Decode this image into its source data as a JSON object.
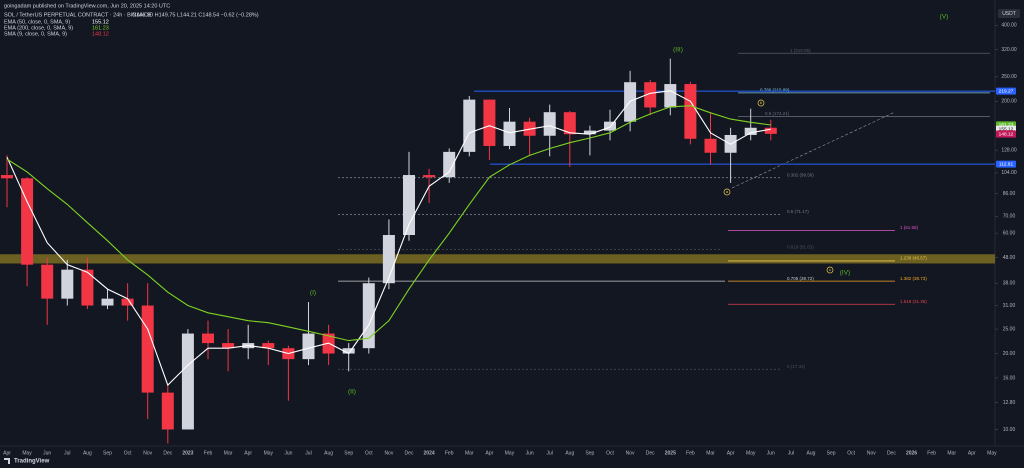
{
  "header": {
    "publisher": "goingadam published on TradingView.com, Jun 20, 2025 14:20 UTC",
    "symbol": "SOL / TetherUS PERPETUAL CONTRACT · 24h · BINANCE",
    "ohlc": "O146.90 H149.75 L144.21 C148.54 −0.62 (−0.28%)",
    "brand": "TradingView"
  },
  "chart_data": {
    "type": "candlestick",
    "categories": [
      "Apr",
      "May",
      "Jun",
      "Jul",
      "Aug",
      "Sep",
      "Oct",
      "Nov",
      "Dec",
      "2023",
      "Feb",
      "Mar",
      "Apr",
      "May",
      "Jun",
      "Jul",
      "Aug",
      "Sep",
      "Oct",
      "Nov",
      "Dec",
      "2024",
      "Feb",
      "Mar",
      "Apr",
      "May",
      "Jun",
      "Jul",
      "Aug",
      "Sep",
      "Oct",
      "Nov",
      "Dec",
      "2025",
      "Feb",
      "Mar",
      "Apr",
      "May",
      "Jun",
      "Jul",
      "Aug",
      "Sep",
      "Oct",
      "Nov",
      "Dec",
      "2026",
      "Feb",
      "Mar",
      "Apr",
      "May"
    ],
    "open": [
      102,
      99,
      45,
      33,
      43,
      31,
      33,
      31,
      14,
      10,
      24,
      22,
      21,
      22,
      21,
      19,
      24,
      20,
      21,
      38,
      59,
      102,
      100,
      126,
      203,
      133,
      166,
      146,
      181,
      148,
      153,
      166,
      238,
      189,
      234,
      142,
      125,
      147,
      157,
      null,
      null,
      null,
      null,
      null,
      null,
      null,
      null,
      null,
      null,
      null
    ],
    "high": [
      122,
      100,
      48,
      47,
      48,
      36,
      38,
      38,
      15,
      25,
      27,
      25,
      26,
      22.5,
      21.5,
      32,
      26,
      22,
      40,
      68,
      126,
      108,
      130,
      210,
      203,
      188,
      172,
      194,
      183,
      160,
      185,
      264,
      243,
      295,
      239,
      180,
      157,
      187,
      169,
      null,
      null,
      null,
      null,
      null,
      null,
      null,
      null,
      null,
      null,
      null
    ],
    "low": [
      76,
      37,
      26,
      31,
      30,
      30,
      27,
      11,
      8.8,
      10,
      19,
      17,
      19,
      18,
      13,
      18,
      18,
      17,
      20,
      36,
      56,
      79,
      95,
      121,
      117,
      129,
      122,
      121,
      110,
      122,
      140,
      152,
      176,
      176,
      135,
      112,
      95,
      140,
      140,
      null,
      null,
      null,
      null,
      null,
      null,
      null,
      null,
      null,
      null,
      null
    ],
    "close": [
      99,
      45,
      33,
      43,
      31,
      33,
      31,
      14,
      10,
      24,
      22,
      21,
      22,
      21,
      19,
      24,
      20,
      21,
      38,
      59,
      102,
      100,
      126,
      203,
      133,
      166,
      146,
      181,
      148,
      153,
      166,
      238,
      189,
      234,
      142,
      125,
      147,
      157,
      148.54,
      null,
      null,
      null,
      null,
      null,
      null,
      null,
      null,
      null,
      null,
      null
    ],
    "up_color": "#d1d4dc",
    "down_color": "#f23645",
    "series": [
      {
        "name": "EMA (50, close, 0, SMA, 9)",
        "last": 155.12,
        "color": "#ffffff",
        "values": [
          120,
          80,
          55,
          45,
          42,
          36,
          33,
          25,
          15,
          18,
          21,
          21,
          21.5,
          21,
          20,
          21,
          22,
          20,
          26,
          40,
          65,
          92,
          105,
          150,
          160,
          150,
          155,
          160,
          150,
          148,
          158,
          200,
          215,
          220,
          200,
          150,
          135,
          150,
          155,
          null,
          null,
          null,
          null,
          null,
          null,
          null,
          null,
          null,
          null,
          null
        ]
      },
      {
        "name": "EMA (200, close, 0, SMA, 9)",
        "last": 161.23,
        "color": "#7ed321",
        "values": [
          118,
          105,
          90,
          78,
          66,
          56,
          47,
          41,
          35,
          31,
          29,
          28,
          27,
          26.5,
          25.5,
          24.5,
          23.5,
          22.5,
          23,
          27,
          36,
          47,
          60,
          78,
          100,
          112,
          122,
          130,
          137,
          143,
          150,
          165,
          178,
          190,
          192,
          180,
          170,
          165,
          161,
          null,
          null,
          null,
          null,
          null,
          null,
          null,
          null,
          null,
          null,
          null
        ]
      },
      {
        "name": "SMA (9, close, 0, SMA, 9)",
        "last": 148.12,
        "color": "#f23645"
      }
    ],
    "ylim": [
      8.6,
      460
    ],
    "log_scale": true,
    "grid": false,
    "y_unit": "USDT",
    "yticks": [
      {
        "value": 400,
        "label": "400.00"
      },
      {
        "value": 320,
        "label": "320.00"
      },
      {
        "value": 250,
        "label": "250.00"
      },
      {
        "value": 200,
        "label": "200.00"
      },
      {
        "value": 128,
        "label": "128.00"
      },
      {
        "value": 104,
        "label": "104.00"
      },
      {
        "value": 86,
        "label": "86.00"
      },
      {
        "value": 70,
        "label": "70.00"
      },
      {
        "value": 60,
        "label": "60.00"
      },
      {
        "value": 48,
        "label": "48.00"
      },
      {
        "value": 38,
        "label": "38.00"
      },
      {
        "value": 31,
        "label": "31.00"
      },
      {
        "value": 25,
        "label": "25.00"
      },
      {
        "value": 20,
        "label": "20.00"
      },
      {
        "value": 16,
        "label": "16.00"
      },
      {
        "value": 12.8,
        "label": "12.80"
      },
      {
        "value": 10,
        "label": "10.00"
      }
    ],
    "levels": [
      {
        "label": "1 (310.05)",
        "value": 310.05,
        "color": "#555b6a"
      },
      {
        "label": "0.786 (215.89)",
        "value": 215.89,
        "color": "#7ec8e3"
      },
      {
        "label": "0.5 (174.21)",
        "value": 174.21,
        "color": "#6b7080"
      },
      {
        "label": "0.382 (99.56)",
        "value": 99.56,
        "color": "#787b86",
        "dashed": true
      },
      {
        "label": "0.5 (71.17)",
        "value": 71.17,
        "color": "#787b86",
        "dashed": true
      },
      {
        "label": "0.618 (51.63)",
        "value": 51.63,
        "color": "#4a4f5c",
        "dashed": true
      },
      {
        "label": "1 (61.56)",
        "value": 61.56,
        "color": "#e056c8"
      },
      {
        "label": "1.236 (46.57)",
        "value": 46.57,
        "color": "#e5c84a"
      },
      {
        "label": "0.705 (38.72)",
        "value": 38.72,
        "color": "#c8c8c8"
      },
      {
        "label": "1.382 (38.73)",
        "value": 38.73,
        "color": "#f5a623"
      },
      {
        "label": "1.618 (31.36)",
        "value": 31.36,
        "color": "#e0434f"
      },
      {
        "label": "0 (17.33)",
        "value": 17.33,
        "color": "#4a4f5c",
        "dashed": true
      }
    ],
    "zone": {
      "low": 45.5,
      "high": 49.5,
      "color": "#8a7a22"
    },
    "price_labels": [
      {
        "value": 219.27,
        "color": "#2962ff"
      },
      {
        "value": 161.23,
        "color": "#5fb82a"
      },
      {
        "value": 155.12,
        "color": "#e8e8e8"
      },
      {
        "value": 148.54,
        "color": "#f23645"
      },
      {
        "value": 148.12,
        "color": "#c2185b"
      },
      {
        "value": 112.61,
        "color": "#2962ff"
      }
    ],
    "annotations": [
      "(I)",
      "(II)",
      "(III)",
      "(IV)",
      "(V)",
      "a",
      "b",
      "c"
    ]
  }
}
